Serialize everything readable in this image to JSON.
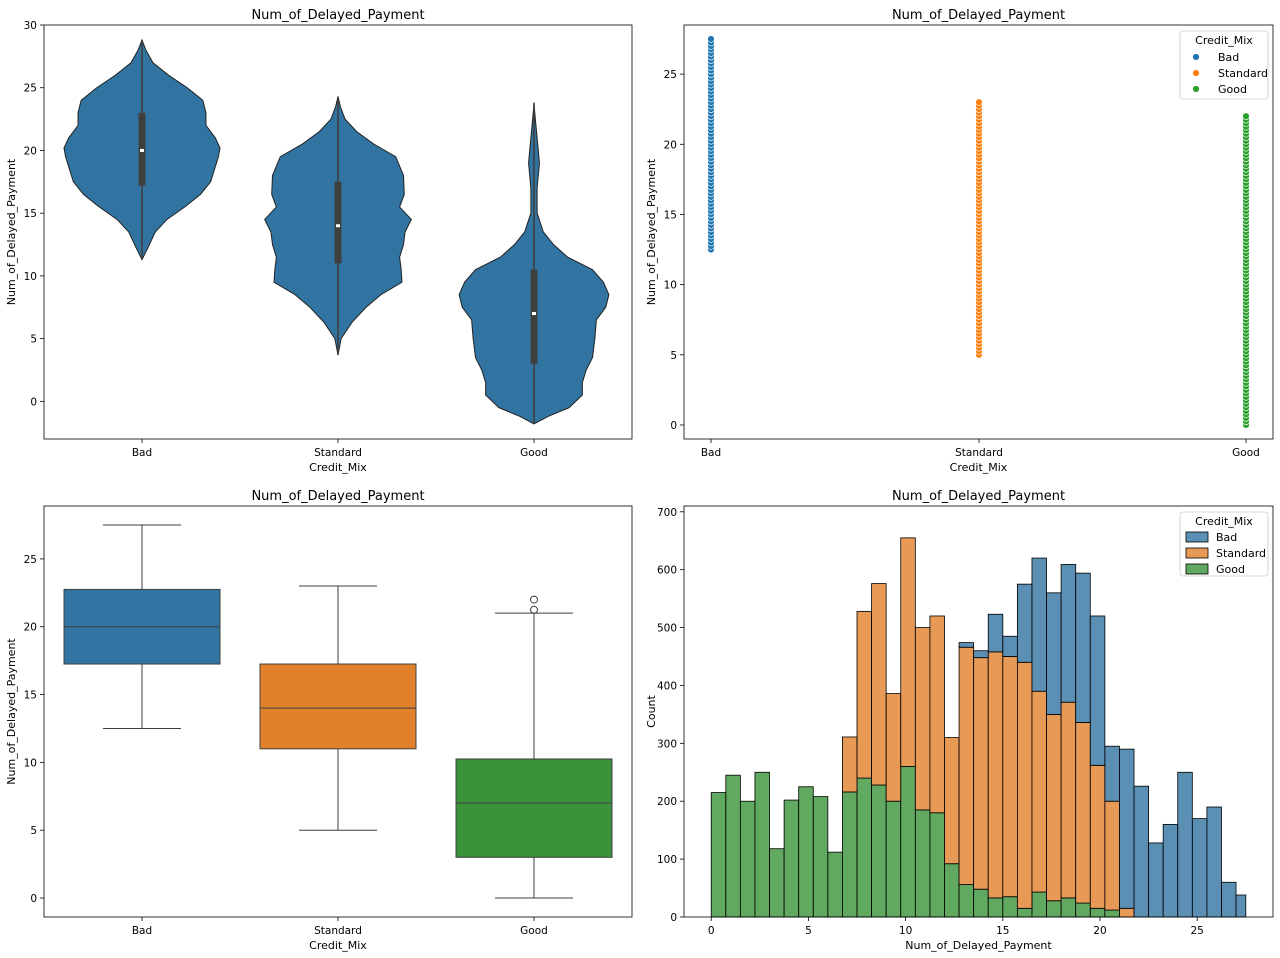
{
  "chart_data": [
    {
      "type": "violin",
      "title": "Num_of_Delayed_Payment",
      "xlabel": "Credit_Mix",
      "ylabel": "Num_of_Delayed_Payment",
      "categories": [
        "Bad",
        "Standard",
        "Good"
      ],
      "ylim": [
        -3,
        30
      ],
      "yticks": [
        "0",
        "5",
        "10",
        "15",
        "20",
        "25",
        "30"
      ],
      "color": "#3274a1",
      "series": [
        {
          "category": "Bad",
          "min": 11.3,
          "max": 28.8,
          "q1": 17.2,
          "median": 20,
          "q3": 23,
          "profile": [
            [
              11.3,
              0.0
            ],
            [
              12.3,
              0.08
            ],
            [
              13.5,
              0.17
            ],
            [
              14.5,
              0.32
            ],
            [
              15.5,
              0.55
            ],
            [
              16.5,
              0.75
            ],
            [
              17.5,
              0.88
            ],
            [
              18.5,
              0.93
            ],
            [
              19.5,
              0.98
            ],
            [
              20.2,
              1.0
            ],
            [
              21,
              0.94
            ],
            [
              22,
              0.82
            ],
            [
              23,
              0.82
            ],
            [
              24,
              0.78
            ],
            [
              25,
              0.58
            ],
            [
              26,
              0.34
            ],
            [
              27,
              0.14
            ],
            [
              28,
              0.05
            ],
            [
              28.8,
              0.0
            ]
          ]
        },
        {
          "category": "Standard",
          "min": 3.7,
          "max": 24.3,
          "q1": 11,
          "median": 14,
          "q3": 17.5,
          "profile": [
            [
              3.7,
              0.0
            ],
            [
              5,
              0.04
            ],
            [
              6.3,
              0.18
            ],
            [
              7.5,
              0.36
            ],
            [
              8.5,
              0.55
            ],
            [
              9.5,
              0.82
            ],
            [
              10.5,
              0.81
            ],
            [
              11.5,
              0.79
            ],
            [
              12.5,
              0.84
            ],
            [
              13.5,
              0.86
            ],
            [
              14.5,
              0.94
            ],
            [
              15.5,
              0.79
            ],
            [
              16.5,
              0.85
            ],
            [
              18,
              0.84
            ],
            [
              19.5,
              0.74
            ],
            [
              20.5,
              0.46
            ],
            [
              21.5,
              0.24
            ],
            [
              22.5,
              0.09
            ],
            [
              23.5,
              0.03
            ],
            [
              24.3,
              0.0
            ]
          ]
        },
        {
          "category": "Good",
          "min": -1.8,
          "max": 23.8,
          "q1": 3,
          "median": 7,
          "q3": 10.5,
          "profile": [
            [
              -1.8,
              0.0
            ],
            [
              -1.2,
              0.18
            ],
            [
              -0.5,
              0.45
            ],
            [
              0.5,
              0.62
            ],
            [
              1.5,
              0.62
            ],
            [
              2.5,
              0.67
            ],
            [
              3.5,
              0.75
            ],
            [
              5,
              0.78
            ],
            [
              6.5,
              0.8
            ],
            [
              7.5,
              0.92
            ],
            [
              8.5,
              0.96
            ],
            [
              9.5,
              0.89
            ],
            [
              10.5,
              0.75
            ],
            [
              11.5,
              0.43
            ],
            [
              12.5,
              0.25
            ],
            [
              13.5,
              0.12
            ],
            [
              15,
              0.04
            ],
            [
              17,
              0.04
            ],
            [
              19,
              0.07
            ],
            [
              21,
              0.04
            ],
            [
              23,
              0.01
            ],
            [
              23.8,
              0.0
            ]
          ]
        }
      ]
    },
    {
      "type": "scatter",
      "title": "Num_of_Delayed_Payment",
      "xlabel": "Credit_Mix",
      "ylabel": "Num_of_Delayed_Payment",
      "categories": [
        "Bad",
        "Standard",
        "Good"
      ],
      "ylim": [
        -1,
        28.5
      ],
      "yticks": [
        "0",
        "5",
        "10",
        "15",
        "20",
        "25"
      ],
      "legend": {
        "title": "Credit_Mix",
        "position": "top-right"
      },
      "series": [
        {
          "name": "Bad",
          "color": "#1f77b4",
          "x": "Bad",
          "ymin": 12.5,
          "ymax": 27.5
        },
        {
          "name": "Standard",
          "color": "#ff7f0e",
          "x": "Standard",
          "ymin": 5,
          "ymax": 23
        },
        {
          "name": "Good",
          "color": "#2ca02c",
          "x": "Good",
          "ymin": 0,
          "ymax": 22
        }
      ]
    },
    {
      "type": "box",
      "title": "Num_of_Delayed_Payment",
      "xlabel": "Credit_Mix",
      "ylabel": "Num_of_Delayed_Payment",
      "categories": [
        "Bad",
        "Standard",
        "Good"
      ],
      "ylim": [
        -1.4,
        28.9
      ],
      "yticks": [
        "0",
        "5",
        "10",
        "15",
        "20",
        "25"
      ],
      "series": [
        {
          "category": "Bad",
          "color": "#3274a1",
          "whislo": 12.5,
          "q1": 17.25,
          "median": 20,
          "q3": 22.75,
          "whishi": 27.5,
          "fliers": []
        },
        {
          "category": "Standard",
          "color": "#e1812c",
          "whislo": 5,
          "q1": 11,
          "median": 14,
          "q3": 17.25,
          "whishi": 23,
          "fliers": []
        },
        {
          "category": "Good",
          "color": "#3a923a",
          "whislo": 0,
          "q1": 3,
          "median": 7,
          "q3": 10.25,
          "whishi": 21,
          "fliers": [
            21.25,
            22
          ]
        }
      ]
    },
    {
      "type": "bar",
      "stacked": true,
      "title": "Num_of_Delayed_Payment",
      "xlabel": "Num_of_Delayed_Payment",
      "ylabel": "Count",
      "xlim": [
        -1.4,
        28.9
      ],
      "ylim": [
        0,
        710
      ],
      "xticks": [
        "0",
        "5",
        "10",
        "15",
        "20",
        "25"
      ],
      "yticks": [
        "0",
        "100",
        "200",
        "300",
        "400",
        "500",
        "600",
        "700"
      ],
      "bin_edges": [
        0,
        0.75,
        1.5,
        2.25,
        3,
        3.75,
        4.5,
        5.25,
        6,
        6.75,
        7.5,
        8.25,
        9,
        9.75,
        10.5,
        11.25,
        12,
        12.75,
        13.5,
        14.25,
        15,
        15.75,
        16.5,
        17.25,
        18,
        18.75,
        19.5,
        20.25,
        21,
        21.75,
        22.5,
        23.25,
        24,
        24.75,
        25.5,
        26.25,
        27,
        27.5
      ],
      "legend": {
        "title": "Credit_Mix",
        "position": "top-right"
      },
      "series": [
        {
          "name": "Good",
          "color": "#3a923a",
          "values": [
            215,
            245,
            200,
            250,
            118,
            202,
            225,
            208,
            112,
            216,
            240,
            228,
            200,
            260,
            185,
            180,
            92,
            56,
            48,
            33,
            35,
            15,
            43,
            28,
            33,
            24,
            15,
            12,
            0,
            0,
            0,
            0,
            0,
            0,
            0,
            0,
            0
          ]
        },
        {
          "name": "Standard",
          "color": "#e1812c",
          "values": [
            0,
            0,
            0,
            0,
            0,
            0,
            0,
            0,
            0,
            95,
            288,
            348,
            186,
            395,
            315,
            340,
            218,
            410,
            400,
            425,
            415,
            425,
            347,
            322,
            338,
            312,
            247,
            188,
            15,
            0,
            0,
            0,
            0,
            0,
            0,
            0,
            0
          ]
        },
        {
          "name": "Bad",
          "color": "#3274a1",
          "values": [
            0,
            0,
            0,
            0,
            0,
            0,
            0,
            0,
            0,
            0,
            0,
            0,
            0,
            0,
            0,
            0,
            0,
            8,
            12,
            65,
            35,
            135,
            230,
            210,
            238,
            258,
            258,
            95,
            275,
            226,
            128,
            160,
            250,
            170,
            190,
            60,
            38
          ]
        }
      ]
    }
  ]
}
